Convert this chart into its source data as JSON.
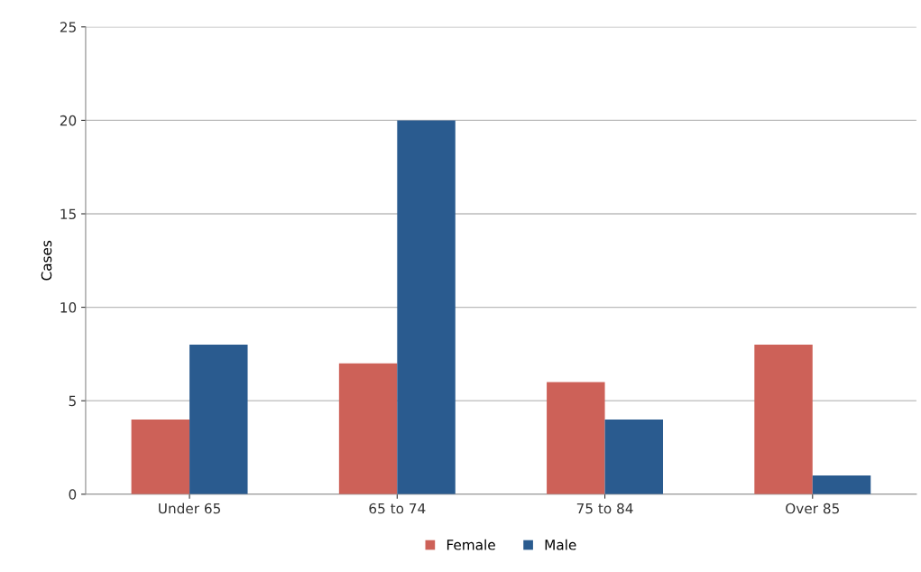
{
  "chart_data": {
    "type": "bar",
    "ylabel": "Cases",
    "categories": [
      "Under 65",
      "65 to 74",
      "75 to 84",
      "Over 85"
    ],
    "series": [
      {
        "name": "Female",
        "color": "#cd6158",
        "values": [
          4,
          7,
          6,
          8
        ]
      },
      {
        "name": "Male",
        "color": "#2a5b8f",
        "values": [
          8,
          20,
          4,
          1
        ]
      }
    ],
    "ylim": [
      0,
      25
    ],
    "yticks": [
      0,
      5,
      10,
      15,
      20,
      25
    ],
    "grid": "y",
    "legend": "bottom"
  }
}
